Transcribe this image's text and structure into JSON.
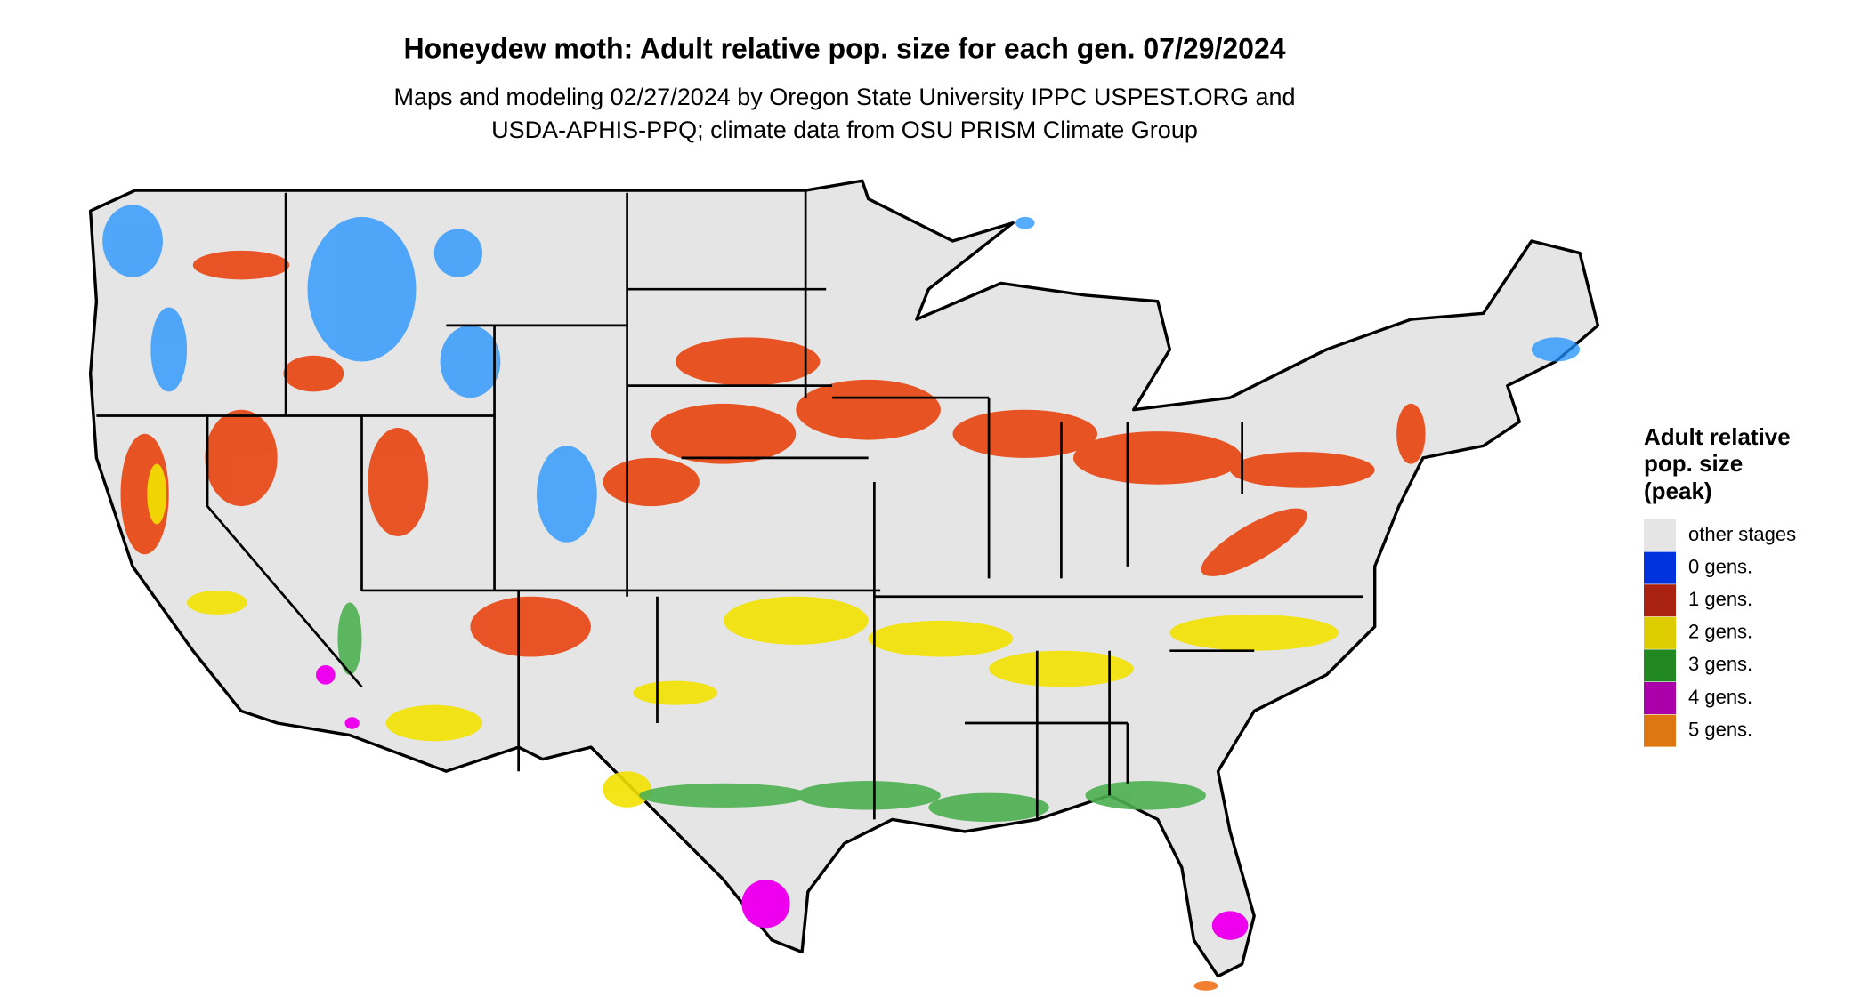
{
  "title": "Honeydew moth: Adult relative pop. size for each gen. 07/29/2024",
  "subtitle": [
    "Maps and modeling 02/27/2024 by Oregon State University IPPC USPEST.ORG and",
    "USDA-APHIS-PPQ; climate data from OSU PRISM Climate Group"
  ],
  "legend": {
    "title": [
      "Adult relative",
      "pop. size",
      "(peak)"
    ],
    "items": [
      {
        "label": "other stages",
        "color": "#e5e5e5"
      },
      {
        "label": "0 gens.",
        "color": "#0033dd"
      },
      {
        "label": "1 gens.",
        "color": "#aa2211"
      },
      {
        "label": "2 gens.",
        "color": "#ddcc00"
      },
      {
        "label": "3 gens.",
        "color": "#228822"
      },
      {
        "label": "4 gens.",
        "color": "#aa00aa"
      },
      {
        "label": "5 gens.",
        "color": "#dd7711"
      }
    ]
  }
}
